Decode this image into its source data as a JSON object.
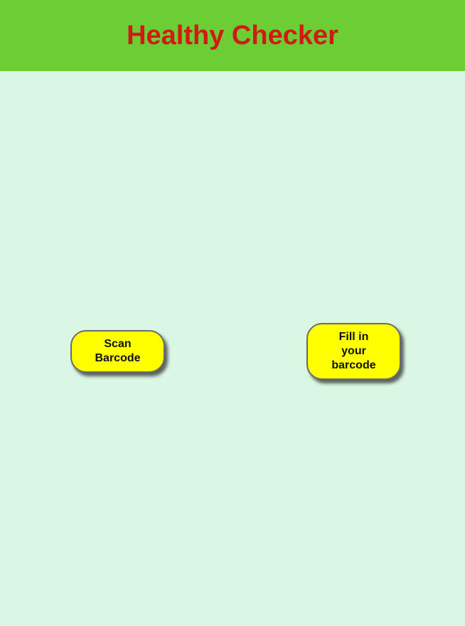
{
  "header": {
    "title": "Healthy Checker"
  },
  "actions": {
    "scan_label": "Scan Barcode",
    "fill_label": "Fill in your barcode"
  },
  "colors": {
    "header_bg": "#6ccd34",
    "title": "#d21a14",
    "page_bg": "#daf7e3",
    "button_bg": "#ffff00"
  }
}
